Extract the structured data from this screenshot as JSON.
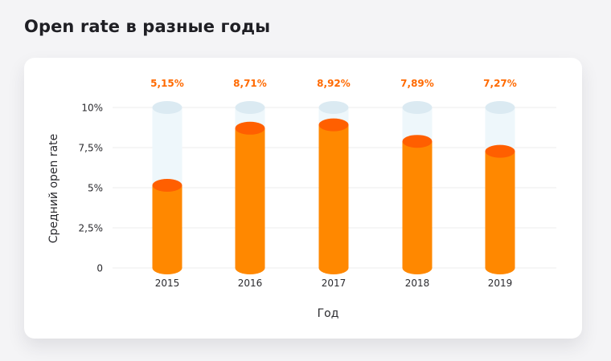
{
  "title": "Open rate в разные годы",
  "colors": {
    "bar_body": "#ff8800",
    "bar_top": "#ff5f00",
    "bar_bg_body": "#eef7fb",
    "bar_bg_top": "#dbeaf2",
    "value_label": "#ff6a00",
    "grid": "#ececee",
    "text": "#2a2a2e"
  },
  "chart_data": {
    "type": "bar",
    "title": "Open rate в разные годы",
    "xlabel": "Год",
    "ylabel": "Средний open rate",
    "categories": [
      "2015",
      "2016",
      "2017",
      "2018",
      "2019"
    ],
    "values": [
      5.15,
      8.71,
      8.92,
      7.89,
      7.27
    ],
    "value_labels": [
      "5,15%",
      "8,71%",
      "8,92%",
      "7,89%",
      "7,27%"
    ],
    "ylim": [
      0,
      10
    ],
    "yticks": [
      0,
      2.5,
      5,
      7.5,
      10
    ],
    "ytick_labels": [
      "0",
      "2,5%",
      "5%",
      "7,5%",
      "10%"
    ],
    "grid": true,
    "bar_style": "3d-cylinder"
  }
}
